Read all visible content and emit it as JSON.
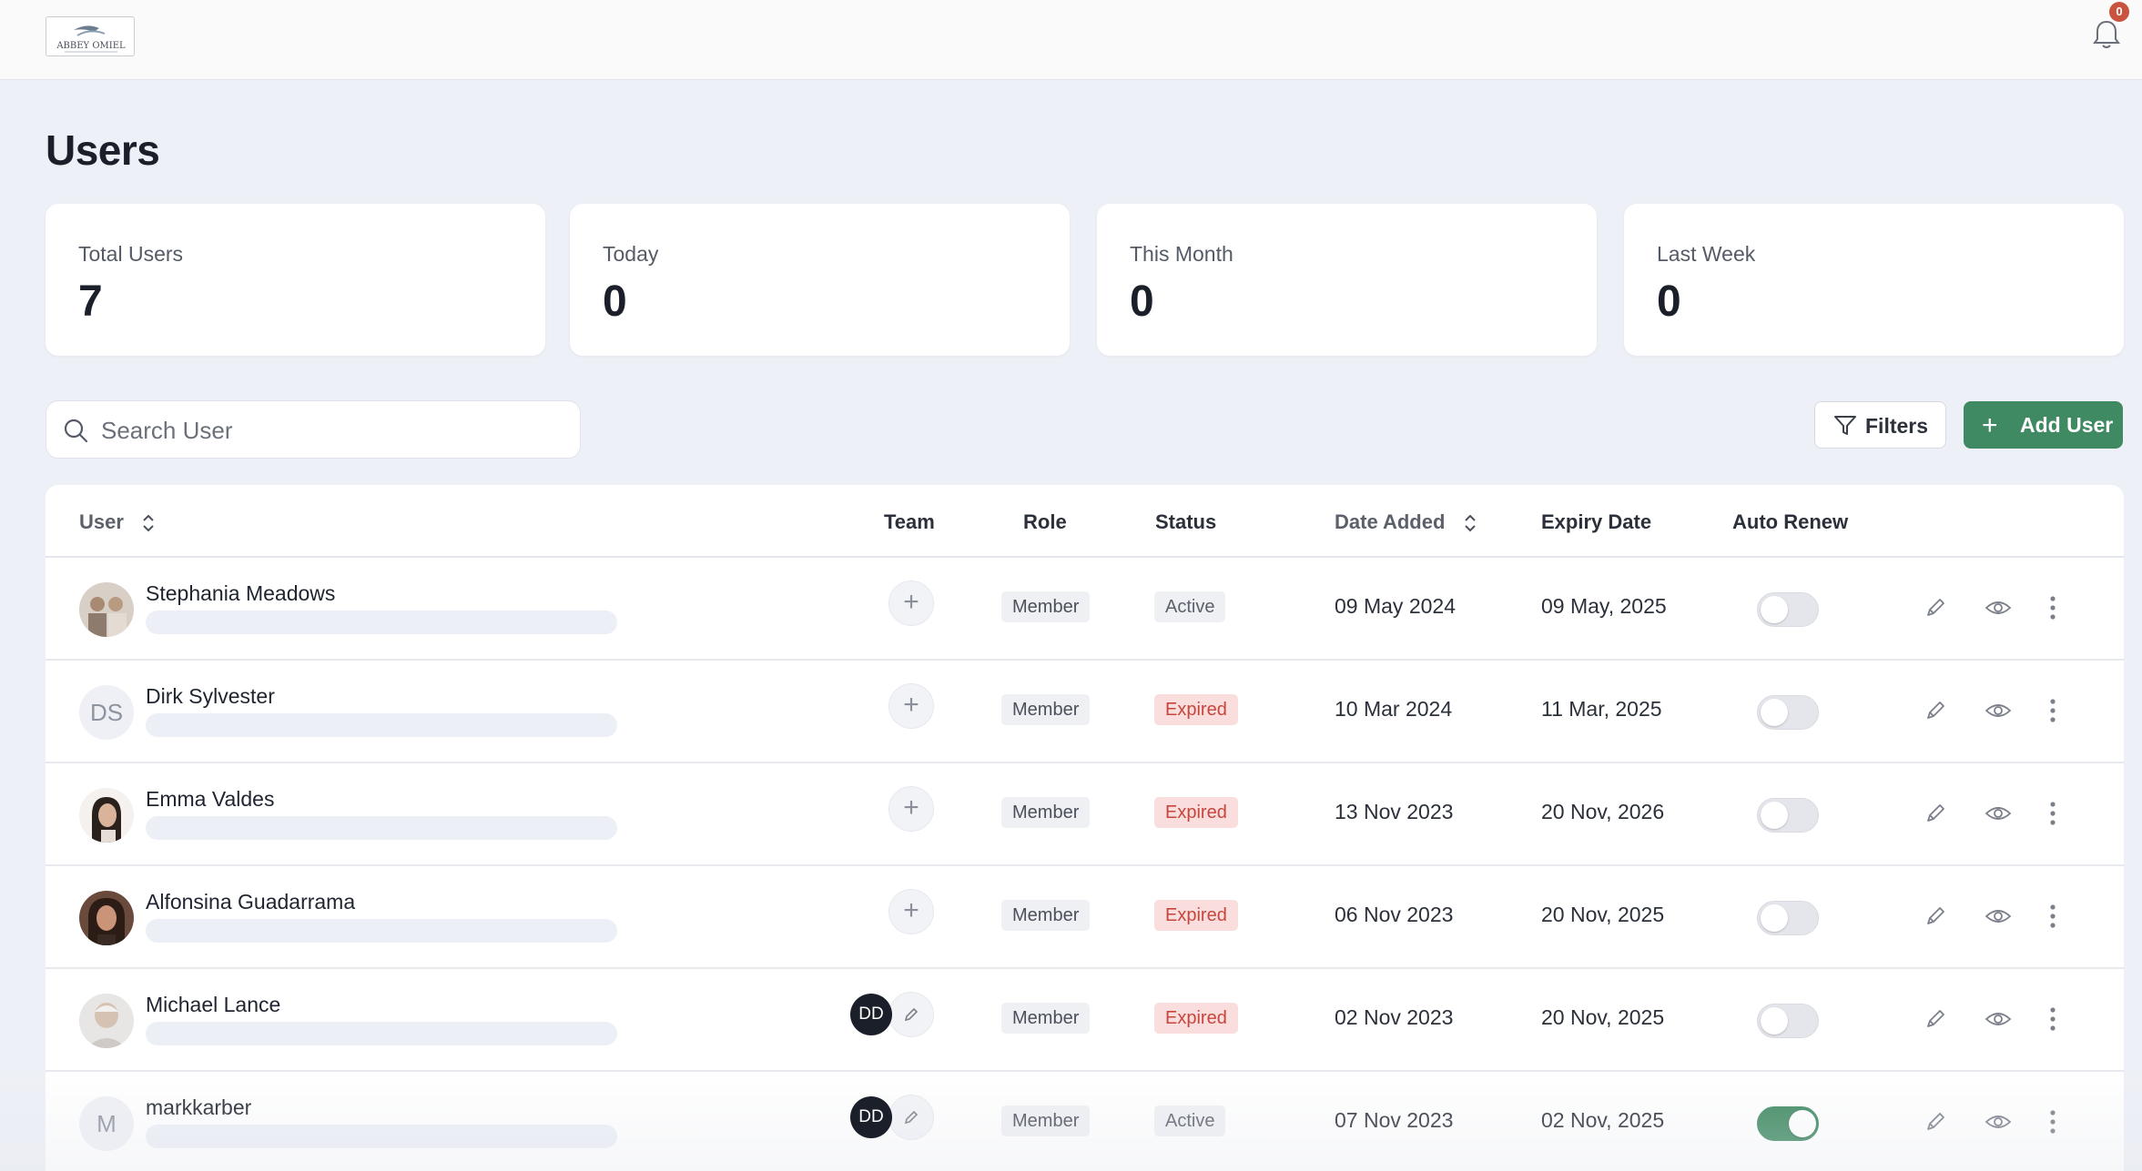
{
  "header": {
    "logo_text": "ABBEY OMIEL",
    "notification_count": "0"
  },
  "page_title": "Users",
  "stats": [
    {
      "label": "Total Users",
      "value": "7"
    },
    {
      "label": "Today",
      "value": "0"
    },
    {
      "label": "This Month",
      "value": "0"
    },
    {
      "label": "Last Week",
      "value": "0"
    }
  ],
  "search": {
    "placeholder": "Search User",
    "value": ""
  },
  "toolbar": {
    "filters_label": "Filters",
    "add_user_label": "Add User"
  },
  "table": {
    "columns": {
      "user": "User",
      "team": "Team",
      "role": "Role",
      "status": "Status",
      "date_added": "Date Added",
      "expiry_date": "Expiry Date",
      "auto_renew": "Auto Renew"
    },
    "rows": [
      {
        "name": "Stephania Meadows",
        "initials": "",
        "avatar": "photo",
        "team": "",
        "role": "Member",
        "status": "Active",
        "date_added": "09 May 2024",
        "expiry": "09 May, 2025",
        "auto_renew": false
      },
      {
        "name": "Dirk Sylvester",
        "initials": "DS",
        "avatar": "initials",
        "team": "",
        "role": "Member",
        "status": "Expired",
        "date_added": "10 Mar 2024",
        "expiry": "11 Mar, 2025",
        "auto_renew": false
      },
      {
        "name": "Emma Valdes",
        "initials": "",
        "avatar": "photo",
        "team": "",
        "role": "Member",
        "status": "Expired",
        "date_added": "13 Nov 2023",
        "expiry": "20 Nov, 2026",
        "auto_renew": false
      },
      {
        "name": "Alfonsina Guadarrama",
        "initials": "",
        "avatar": "photo",
        "team": "",
        "role": "Member",
        "status": "Expired",
        "date_added": "06 Nov 2023",
        "expiry": "20 Nov, 2025",
        "auto_renew": false
      },
      {
        "name": "Michael Lance",
        "initials": "",
        "avatar": "photo",
        "team": "DD",
        "role": "Member",
        "status": "Expired",
        "date_added": "02 Nov 2023",
        "expiry": "20 Nov, 2025",
        "auto_renew": false
      },
      {
        "name": "markkarber",
        "initials": "M",
        "avatar": "initials",
        "team": "DD",
        "role": "Member",
        "status": "Active",
        "date_added": "07 Nov 2023",
        "expiry": "02 Nov, 2025",
        "auto_renew": true
      }
    ]
  },
  "colors": {
    "accent": "#3f8a62",
    "expired_text": "#c6453c",
    "expired_bg": "#f9dedd",
    "badge": "#c9533f"
  }
}
